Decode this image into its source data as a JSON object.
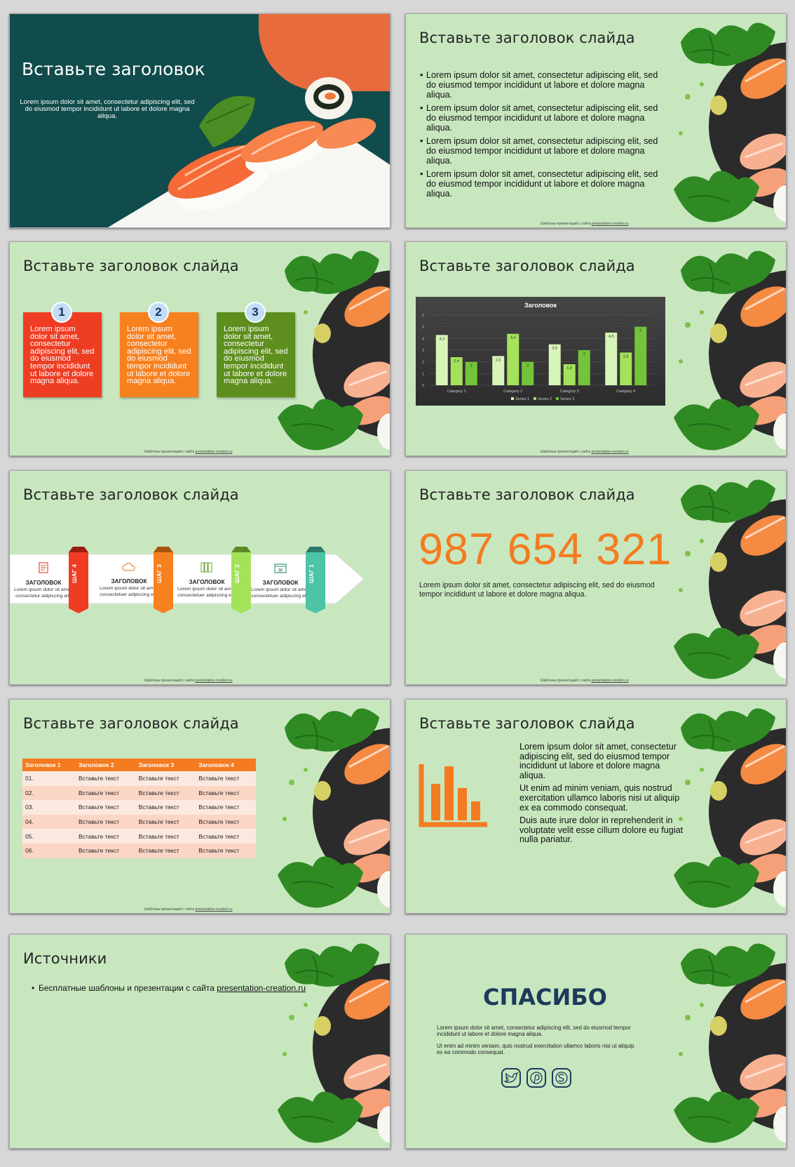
{
  "title_slide": {
    "title": "Вставьте заголовок",
    "subtitle": "Lorem ipsum dolor sit amet, consectetur adipiscing elit, sed do eiusmod tempor incididunt ut labore et dolore magna aliqua."
  },
  "footer": {
    "prefix": "Шаблоны презентаций с сайта ",
    "link": "presentation-creation.ru"
  },
  "slide_title": "Вставьте заголовок слайда",
  "bullets_slide": {
    "bullets": [
      "Lorem ipsum dolor sit amet, consectetur adipiscing elit, sed do eiusmod tempor incididunt ut labore et dolore magna aliqua.",
      "Lorem ipsum dolor sit amet, consectetur adipiscing elit, sed do eiusmod tempor incididunt ut labore et dolore magna aliqua.",
      "Lorem ipsum dolor sit amet, consectetur adipiscing elit, sed do eiusmod tempor incididunt ut labore et dolore magna aliqua.",
      "Lorem ipsum dolor sit amet, consectetur adipiscing elit, sed do eiusmod tempor incididunt ut labore et dolore magna aliqua."
    ]
  },
  "boxes_slide": {
    "boxes": [
      {
        "num": "1",
        "text": "Lorem ipsum dolor sit amet, consectetur adipiscing elit, sed do eiusmod tempor incididunt ut labore et dolore magna aliqua.",
        "color": "#ee3d23"
      },
      {
        "num": "2",
        "text": "Lorem ipsum dolor sit amet, consectetur adipiscing elit, sed do eiusmod tempor incididunt ut labore et dolore magna aliqua.",
        "color": "#f7811f"
      },
      {
        "num": "3",
        "text": "Lorem ipsum dolor sit amet, consectetur adipiscing elit, sed do eiusmod tempor incididunt ut labore et dolore magna aliqua.",
        "color": "#5e8e1e"
      }
    ]
  },
  "chart_data": {
    "type": "bar",
    "title": "Заголовок",
    "categories": [
      "Category 1",
      "Category 2",
      "Category 3",
      "Category 4"
    ],
    "series": [
      {
        "name": "Series 1",
        "values": [
          4.3,
          2.5,
          3.5,
          4.5
        ],
        "color": "#d8f5b9"
      },
      {
        "name": "Series 2",
        "values": [
          2.4,
          4.4,
          1.8,
          2.8
        ],
        "color": "#a4e25a"
      },
      {
        "name": "Series 3",
        "values": [
          2,
          2,
          3,
          5
        ],
        "color": "#74c43a"
      }
    ],
    "ylim": [
      0,
      6
    ],
    "yticks": [
      "0",
      "1",
      "2",
      "3",
      "4",
      "5",
      "6"
    ],
    "legend": "bottom",
    "grid": true
  },
  "steps_slide": {
    "steps": [
      {
        "heading": "ЗАГОЛОВОК",
        "text": "Lorem ipsum dolor sit amet, consectetur adipiscing elit.",
        "tag": "ШАГ 4",
        "icon": "document-icon",
        "color": "#ee3d23"
      },
      {
        "heading": "ЗАГОЛОВОК",
        "text": "Lorem ipsum dolor sit amet, consectetuer adipiscing elit.",
        "tag": "ШАГ 3",
        "icon": "cloud-icon",
        "color": "#f7811f"
      },
      {
        "heading": "ЗАГОЛОВОК",
        "text": "Lorem ipsum dolor sit amet, consectetuer adipiscing elit.",
        "tag": "ШАГ 2",
        "icon": "books-icon",
        "color": "#a4e25a"
      },
      {
        "heading": "ЗАГОЛОВОК",
        "text": "Lorem ipsum dolor sit amet, consectetuer adipiscing elit.",
        "tag": "ШАГ 1",
        "icon": "calendar-icon",
        "color": "#4cc4a5"
      }
    ],
    "calendar_day": "30"
  },
  "number_slide": {
    "number": "987 654 321",
    "text": "Lorem ipsum dolor sit amet, consectetur adipiscing elit, sed do eiusmod tempor incididunt ut labore et dolore magna aliqua."
  },
  "table_slide": {
    "headers": [
      "Заголовок 1",
      "Заголовок 2",
      "Заголовок 3",
      "Заголовок 4"
    ],
    "rows": [
      [
        "01.",
        "Вставьте текст",
        "Вставьте текст",
        "Вставьте текст"
      ],
      [
        "02.",
        "Вставьте текст",
        "Вставьте текст",
        "Вставьте текст"
      ],
      [
        "03.",
        "Вставьте текст",
        "Вставьте текст",
        "Вставьте текст"
      ],
      [
        "04.",
        "Вставьте текст",
        "Вставьте текст",
        "Вставьте текст"
      ],
      [
        "05.",
        "Вставьте текст",
        "Вставьте текст",
        "Вставьте текст"
      ],
      [
        "06.",
        "Вставьте текст",
        "Вставьте текст",
        "Вставьте текст"
      ]
    ]
  },
  "text_slide": {
    "icon": "bar-chart-icon",
    "paragraphs": [
      "Lorem ipsum dolor sit amet, consectetur adipiscing elit, sed do eiusmod tempor incididunt ut labore et dolore magna aliqua.",
      "Ut enim ad minim veniam, quis nostrud exercitation ullamco laboris nisi ut aliquip ex ea commodo consequat.",
      "Duis aute irure dolor in reprehenderit in voluptate velit esse cillum dolore eu fugiat nulla pariatur."
    ]
  },
  "sources_slide": {
    "title": "Источники",
    "item_text": "Бесплатные шаблоны и презентации с сайта ",
    "item_link": "presentation-creation.ru"
  },
  "thanks_slide": {
    "title": "СПАСИБО",
    "text1": "Lorem ipsum dolor sit amet, consectetur adipiscing elit, sed do eiusmod tempor incididunt ut labore et dolore magna aliqua.",
    "text2": "Ut enim ad minim veniam, quis nostrud exercitation ullamco laboris nisi ut aliquip ex ea commodo consequat.",
    "social": [
      "twitter-icon",
      "pinterest-icon",
      "skype-icon"
    ]
  },
  "colors": {
    "background": "#c8e7bf",
    "accent": "#f47b20",
    "teal": "#114c4c"
  }
}
